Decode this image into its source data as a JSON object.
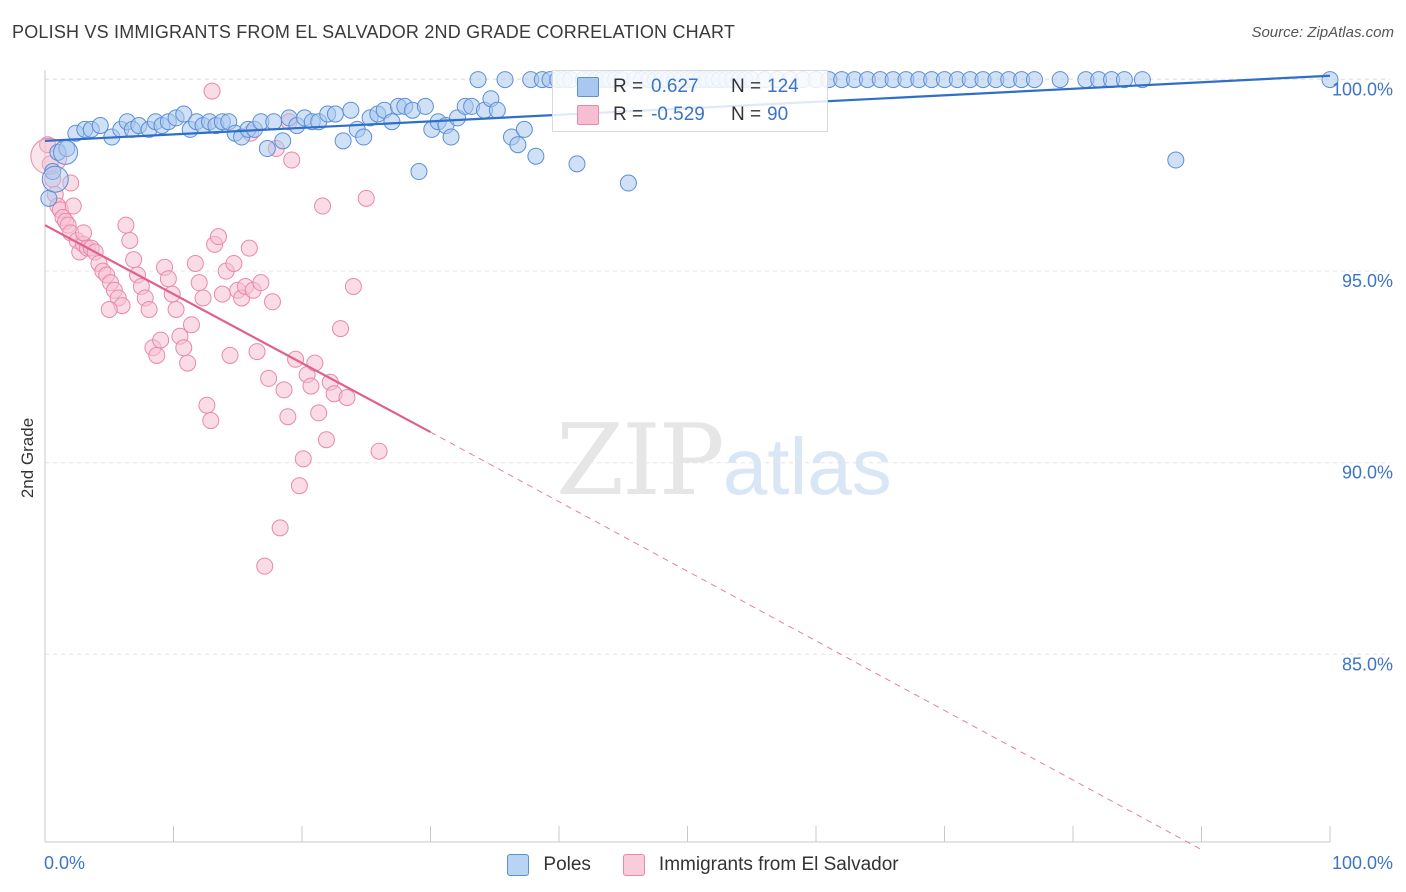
{
  "header": {
    "title": "POLISH VS IMMIGRANTS FROM EL SALVADOR 2ND GRADE CORRELATION CHART",
    "source": "Source: ZipAtlas.com"
  },
  "watermark": {
    "zip": "ZIP",
    "atlas": "atlas"
  },
  "legend": {
    "r_label": "R =",
    "n_label": "N =",
    "series": [
      {
        "r": "0.627",
        "n": "124"
      },
      {
        "r": "-0.529",
        "n": "90"
      }
    ]
  },
  "colors": {
    "poles_fill": "#a9c8ef",
    "poles_stroke": "#5b8fd6",
    "poles_line": "#2f6fca",
    "salv_fill": "#f6bfd1",
    "salv_stroke": "#e889a8",
    "salv_line": "#e0608c",
    "value_text": "#3d74c6",
    "grid": "#e6e6e6"
  },
  "chart_data": {
    "type": "scatter",
    "title": "POLISH VS IMMIGRANTS FROM EL SALVADOR 2ND GRADE CORRELATION CHART",
    "xlabel": "",
    "ylabel": "2nd Grade",
    "xlim": [
      0,
      100
    ],
    "ylim": [
      80.5,
      100.5
    ],
    "x_tick_labels": [
      "0.0%",
      "100.0%"
    ],
    "y_ticks": [
      85,
      90,
      95,
      100
    ],
    "y_tick_labels": [
      "85.0%",
      "90.0%",
      "95.0%",
      "100.0%"
    ],
    "grid": true,
    "series": [
      {
        "name": "Poles",
        "r": 0.627,
        "n": 124,
        "trend": {
          "x": [
            0,
            100
          ],
          "y": [
            98.4,
            100.1
          ]
        },
        "points": [
          [
            0.3,
            96.9
          ],
          [
            0.6,
            97.6
          ],
          [
            1.0,
            98.1
          ],
          [
            1.7,
            98.2
          ],
          [
            2.4,
            98.6
          ],
          [
            3.1,
            98.7
          ],
          [
            3.6,
            98.7
          ],
          [
            4.3,
            98.8
          ],
          [
            5.2,
            98.5
          ],
          [
            5.9,
            98.7
          ],
          [
            6.4,
            98.9
          ],
          [
            6.8,
            98.7
          ],
          [
            7.3,
            98.8
          ],
          [
            8.1,
            98.7
          ],
          [
            8.6,
            98.9
          ],
          [
            9.1,
            98.8
          ],
          [
            9.6,
            98.9
          ],
          [
            10.2,
            99.0
          ],
          [
            10.8,
            99.1
          ],
          [
            11.3,
            98.7
          ],
          [
            11.8,
            98.9
          ],
          [
            12.3,
            98.8
          ],
          [
            12.8,
            98.9
          ],
          [
            13.3,
            98.8
          ],
          [
            13.8,
            98.9
          ],
          [
            14.3,
            98.9
          ],
          [
            14.8,
            98.6
          ],
          [
            15.3,
            98.5
          ],
          [
            15.8,
            98.7
          ],
          [
            16.3,
            98.7
          ],
          [
            16.8,
            98.9
          ],
          [
            17.3,
            98.2
          ],
          [
            17.8,
            98.9
          ],
          [
            18.5,
            98.4
          ],
          [
            19.0,
            99.0
          ],
          [
            19.6,
            98.8
          ],
          [
            20.2,
            99.0
          ],
          [
            20.8,
            98.9
          ],
          [
            21.3,
            98.9
          ],
          [
            22.0,
            99.1
          ],
          [
            22.6,
            99.1
          ],
          [
            23.2,
            98.4
          ],
          [
            23.8,
            99.2
          ],
          [
            24.3,
            98.7
          ],
          [
            24.8,
            98.5
          ],
          [
            25.3,
            99.0
          ],
          [
            25.9,
            99.1
          ],
          [
            26.4,
            99.2
          ],
          [
            27.0,
            98.9
          ],
          [
            27.5,
            99.3
          ],
          [
            28.0,
            99.3
          ],
          [
            28.6,
            99.2
          ],
          [
            29.1,
            97.6
          ],
          [
            29.6,
            99.3
          ],
          [
            30.1,
            98.7
          ],
          [
            30.6,
            98.9
          ],
          [
            31.2,
            98.8
          ],
          [
            31.6,
            98.5
          ],
          [
            32.1,
            99.0
          ],
          [
            32.7,
            99.3
          ],
          [
            33.2,
            99.3
          ],
          [
            33.7,
            100.0
          ],
          [
            34.2,
            99.2
          ],
          [
            34.7,
            99.5
          ],
          [
            35.2,
            99.2
          ],
          [
            35.8,
            100.0
          ],
          [
            36.3,
            98.5
          ],
          [
            36.8,
            98.3
          ],
          [
            37.3,
            98.7
          ],
          [
            37.8,
            100.0
          ],
          [
            38.2,
            98.0
          ],
          [
            38.7,
            100.0
          ],
          [
            39.3,
            100.0
          ],
          [
            39.9,
            100.0
          ],
          [
            40.4,
            100.0
          ],
          [
            40.9,
            100.0
          ],
          [
            41.4,
            97.8
          ],
          [
            41.9,
            100.0
          ],
          [
            42.4,
            100.0
          ],
          [
            42.9,
            100.0
          ],
          [
            43.4,
            100.0
          ],
          [
            43.9,
            100.0
          ],
          [
            44.4,
            100.0
          ],
          [
            44.9,
            100.0
          ],
          [
            45.4,
            97.3
          ],
          [
            45.9,
            100.0
          ],
          [
            46.4,
            100.0
          ],
          [
            47.0,
            100.0
          ],
          [
            47.5,
            100.0
          ],
          [
            48.0,
            100.0
          ],
          [
            48.5,
            100.0
          ],
          [
            49.0,
            100.0
          ],
          [
            49.5,
            100.0
          ],
          [
            50.0,
            100.0
          ],
          [
            50.5,
            100.0
          ],
          [
            51.0,
            100.0
          ],
          [
            51.5,
            100.0
          ],
          [
            52.0,
            100.0
          ],
          [
            52.5,
            100.0
          ],
          [
            53.0,
            100.0
          ],
          [
            53.5,
            100.0
          ],
          [
            54.0,
            100.0
          ],
          [
            54.5,
            100.0
          ],
          [
            55.0,
            100.0
          ],
          [
            56.0,
            100.0
          ],
          [
            57.0,
            100.0
          ],
          [
            58.0,
            100.0
          ],
          [
            59.0,
            100.0
          ],
          [
            60.0,
            100.0
          ],
          [
            61.0,
            100.0
          ],
          [
            62.0,
            100.0
          ],
          [
            63.0,
            100.0
          ],
          [
            64.0,
            100.0
          ],
          [
            65.0,
            100.0
          ],
          [
            66.0,
            100.0
          ],
          [
            67.0,
            100.0
          ],
          [
            68.0,
            100.0
          ],
          [
            69.0,
            100.0
          ],
          [
            70.0,
            100.0
          ],
          [
            71.0,
            100.0
          ],
          [
            72.0,
            100.0
          ],
          [
            73.0,
            100.0
          ],
          [
            74.0,
            100.0
          ],
          [
            75.0,
            100.0
          ],
          [
            76.0,
            100.0
          ],
          [
            77.0,
            100.0
          ],
          [
            79.0,
            100.0
          ],
          [
            81.0,
            100.0
          ],
          [
            82.0,
            100.0
          ],
          [
            83.0,
            100.0
          ],
          [
            84.0,
            100.0
          ],
          [
            85.4,
            100.0
          ],
          [
            88.0,
            97.9
          ],
          [
            100.0,
            100.0
          ]
        ]
      },
      {
        "name": "Immigrants from El Salvador",
        "r": -0.529,
        "n": 90,
        "trend": {
          "x": [
            0,
            30
          ],
          "y": [
            96.2,
            90.8
          ]
        },
        "trend_dashed": {
          "x": [
            30,
            90
          ],
          "y": [
            90.8,
            79.9
          ]
        },
        "points": [
          [
            0.2,
            98.3
          ],
          [
            0.4,
            97.8
          ],
          [
            0.6,
            97.4
          ],
          [
            0.8,
            97.0
          ],
          [
            1.0,
            96.7
          ],
          [
            1.2,
            96.6
          ],
          [
            1.4,
            96.4
          ],
          [
            1.6,
            96.3
          ],
          [
            1.8,
            96.2
          ],
          [
            2.0,
            96.0
          ],
          [
            2.2,
            96.7
          ],
          [
            2.5,
            95.8
          ],
          [
            2.7,
            95.5
          ],
          [
            3.0,
            95.7
          ],
          [
            3.3,
            95.6
          ],
          [
            3.6,
            95.6
          ],
          [
            3.9,
            95.5
          ],
          [
            4.2,
            95.2
          ],
          [
            4.5,
            95.0
          ],
          [
            4.8,
            94.9
          ],
          [
            5.1,
            94.7
          ],
          [
            5.4,
            94.5
          ],
          [
            5.7,
            94.3
          ],
          [
            6.0,
            94.1
          ],
          [
            6.3,
            96.2
          ],
          [
            6.6,
            95.8
          ],
          [
            6.9,
            95.3
          ],
          [
            7.2,
            94.9
          ],
          [
            7.5,
            94.6
          ],
          [
            7.8,
            94.3
          ],
          [
            8.1,
            94.0
          ],
          [
            8.4,
            93.0
          ],
          [
            8.7,
            92.8
          ],
          [
            9.0,
            93.2
          ],
          [
            9.3,
            95.1
          ],
          [
            9.6,
            94.8
          ],
          [
            9.9,
            94.4
          ],
          [
            10.2,
            94.0
          ],
          [
            10.5,
            93.3
          ],
          [
            10.8,
            93.0
          ],
          [
            11.1,
            92.6
          ],
          [
            11.4,
            93.6
          ],
          [
            11.7,
            95.2
          ],
          [
            12.0,
            94.7
          ],
          [
            12.3,
            94.3
          ],
          [
            12.6,
            91.5
          ],
          [
            12.9,
            91.1
          ],
          [
            13.2,
            95.7
          ],
          [
            13.5,
            95.9
          ],
          [
            13.8,
            94.4
          ],
          [
            14.1,
            95.0
          ],
          [
            14.4,
            92.8
          ],
          [
            14.7,
            95.2
          ],
          [
            15.0,
            94.5
          ],
          [
            15.3,
            94.3
          ],
          [
            15.6,
            94.6
          ],
          [
            15.9,
            95.6
          ],
          [
            16.2,
            94.5
          ],
          [
            16.5,
            92.9
          ],
          [
            16.8,
            94.7
          ],
          [
            17.1,
            87.3
          ],
          [
            17.4,
            92.2
          ],
          [
            17.7,
            94.2
          ],
          [
            18.0,
            98.2
          ],
          [
            18.3,
            88.3
          ],
          [
            18.6,
            91.9
          ],
          [
            18.9,
            91.2
          ],
          [
            19.2,
            97.9
          ],
          [
            19.5,
            92.7
          ],
          [
            19.8,
            89.4
          ],
          [
            20.1,
            90.1
          ],
          [
            20.4,
            92.3
          ],
          [
            20.7,
            92.0
          ],
          [
            21.0,
            92.6
          ],
          [
            21.3,
            91.3
          ],
          [
            21.6,
            96.7
          ],
          [
            21.9,
            90.6
          ],
          [
            22.2,
            92.1
          ],
          [
            22.5,
            91.8
          ],
          [
            23.0,
            93.5
          ],
          [
            23.5,
            91.7
          ],
          [
            24.0,
            94.6
          ],
          [
            25.0,
            96.9
          ],
          [
            26.0,
            90.3
          ],
          [
            13.0,
            99.7
          ],
          [
            16.0,
            98.6
          ],
          [
            19.0,
            98.9
          ],
          [
            2.0,
            97.3
          ],
          [
            3.0,
            96.0
          ],
          [
            5.0,
            94.0
          ]
        ]
      }
    ]
  }
}
